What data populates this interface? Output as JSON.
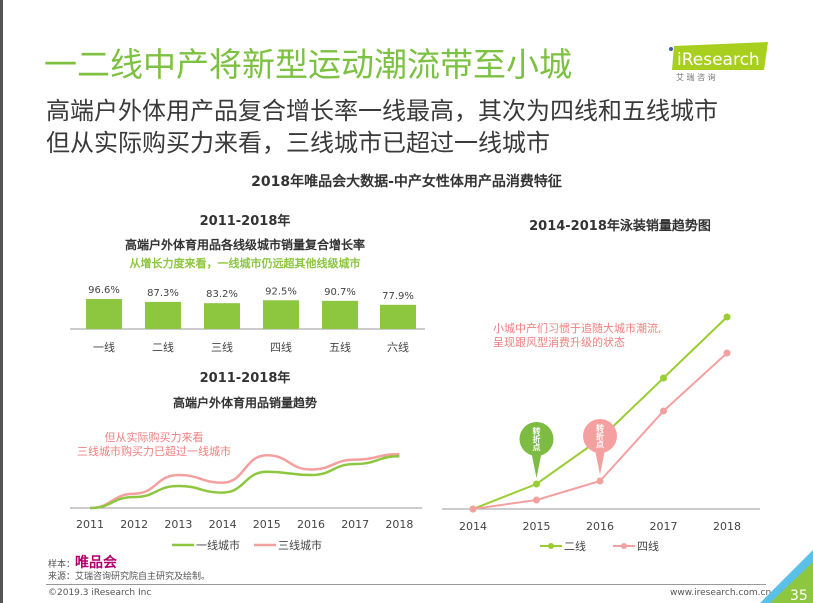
{
  "header": {
    "title": "一二线中产将新型运动潮流带至小城",
    "subtitle_1": "高端户外体用产品复合增长率一线最高，其次为四线和五线城市",
    "subtitle_2": "但从实际购买力来看，三线城市已超过一线城市",
    "logo_text": "iResearch",
    "logo_cn": "艾 瑞 咨 询"
  },
  "main_title": "2018年唯品会大数据-中产女性体用产品消费特征",
  "colors": {
    "green": "#8dc63f",
    "pink": "#f4a0a0",
    "title_green": "#7dc142",
    "pink_text": "#f07f7f"
  },
  "chart_data": [
    {
      "type": "bar",
      "title": "2011-2018年",
      "subtitle": "高端户外体育用品各线级城市销量复合增长率",
      "annotation": "从增长力度来看，一线城市仍远超其他线级城市",
      "categories": [
        "一线",
        "二线",
        "三线",
        "四线",
        "五线",
        "六线"
      ],
      "values": [
        96.6,
        87.3,
        83.2,
        92.5,
        90.7,
        77.9
      ],
      "data_labels": [
        "96.6%",
        "87.3%",
        "83.2%",
        "92.5%",
        "90.7%",
        "77.9%"
      ]
    },
    {
      "type": "line",
      "title": "2011-2018年",
      "subtitle": "高端户外体育用品销量趋势",
      "annotation": [
        "但从实际购买力来看",
        "三线城市购买力已超过一线城市"
      ],
      "x": [
        "2011",
        "2012",
        "2013",
        "2014",
        "2015",
        "2016",
        "2017",
        "2018"
      ],
      "series": [
        {
          "name": "一线城市",
          "color": "#8dc63f",
          "values": [
            0,
            10,
            20,
            14,
            33,
            30,
            40,
            47
          ]
        },
        {
          "name": "三线城市",
          "color": "#f4a0a0",
          "values": [
            0,
            13,
            30,
            23,
            48,
            35,
            44,
            49
          ]
        }
      ],
      "legend": "bottom",
      "y_axis_labels": "none"
    },
    {
      "type": "line",
      "title": "2014-2018年泳装销量趋势图",
      "annotation": [
        "小城中产们习惯于追随大城市潮流,",
        "呈现跟风型消费升级的状态"
      ],
      "callout": "转折点",
      "x": [
        "2014",
        "2015",
        "2016",
        "2017",
        "2018"
      ],
      "series": [
        {
          "name": "二线",
          "color": "#9acd32",
          "values": [
            0,
            25,
            70,
            131,
            192
          ],
          "turning_point": "2015"
        },
        {
          "name": "四线",
          "color": "#f4a0a0",
          "values": [
            0,
            9,
            28,
            98,
            156
          ],
          "turning_point": "2016"
        }
      ],
      "legend": "bottom",
      "markers": true
    }
  ],
  "footer": {
    "sample_label": "样本：",
    "sample_brand": "唯品会",
    "source": "来源：艾瑞咨询研究院自主研究及绘制。",
    "copyright": "©2019.3 iResearch Inc",
    "website": "www.iresearch.com.cn",
    "page": "35"
  }
}
